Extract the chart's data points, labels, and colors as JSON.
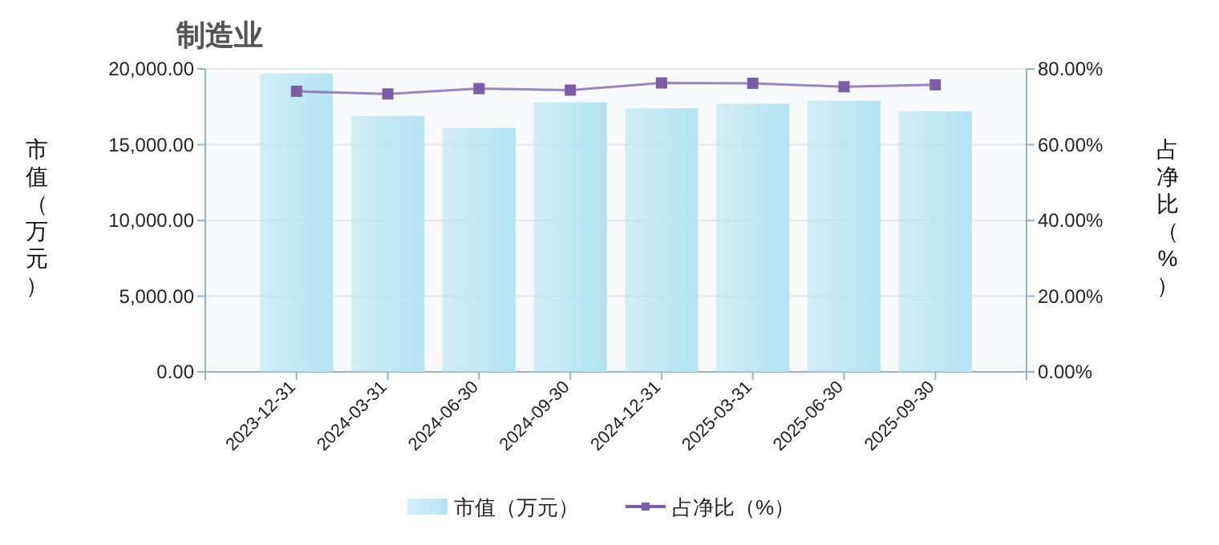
{
  "chart_data": {
    "type": "bar",
    "title": "制造业",
    "ylabel": "市值（万元）",
    "y2label": "占净比（%）",
    "categories": [
      "2023-12-31",
      "2024-03-31",
      "2024-06-30",
      "2024-09-30",
      "2024-12-31",
      "2025-03-31",
      "2025-06-30",
      "2025-09-30"
    ],
    "series": [
      {
        "name": "市值（万元）",
        "color": "#b3e3f3",
        "values": [
          19700,
          16900,
          16100,
          17800,
          17400,
          17700,
          17900,
          17200
        ]
      },
      {
        "name": "占净比（%）",
        "type": "line",
        "axis": "y2",
        "color": "#7b5ea7",
        "values": [
          74.1,
          73.4,
          74.8,
          74.4,
          76.3,
          76.2,
          75.3,
          75.8
        ]
      }
    ],
    "ylim": [
      0,
      20000
    ],
    "yticks": [
      {
        "value": 0,
        "label": "0.00"
      },
      {
        "value": 5000,
        "label": "5,000.00"
      },
      {
        "value": 10000,
        "label": "10,000.00"
      },
      {
        "value": 15000,
        "label": "15,000.00"
      },
      {
        "value": 20000,
        "label": "20,000.00"
      }
    ],
    "y2lim": [
      0,
      80
    ],
    "y2ticks": [
      {
        "value": 0,
        "label": "0.00%"
      },
      {
        "value": 20,
        "label": "20.00%"
      },
      {
        "value": 40,
        "label": "40.00%"
      },
      {
        "value": 60,
        "label": "60.00%"
      },
      {
        "value": 80,
        "label": "80.00%"
      }
    ],
    "grid": "y",
    "legend": "bottom",
    "marker": "square"
  }
}
